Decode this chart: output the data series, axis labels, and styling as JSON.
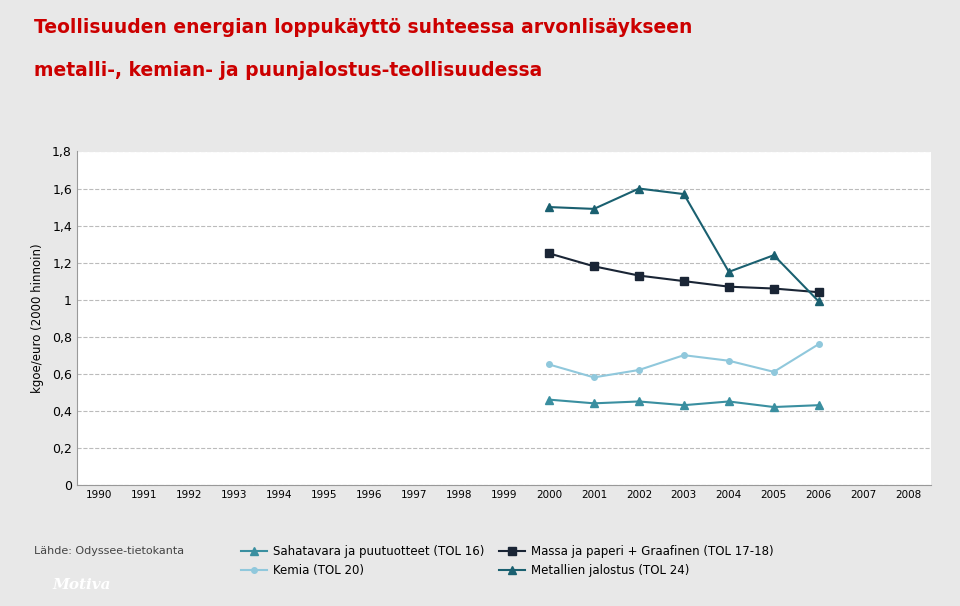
{
  "title_line1": "Teollisuuden energian loppukäyttö suhteessa arvonlisäykseen",
  "title_line2": "metalli-, kemian- ja puunjalostus-teollisuudessa",
  "title_color": "#cc0000",
  "ylabel": "kgoe/euro (2000 hinnoin)",
  "years": [
    2000,
    2001,
    2002,
    2003,
    2004,
    2005,
    2006
  ],
  "sahatavara": [
    0.46,
    0.44,
    0.45,
    0.43,
    0.45,
    0.42,
    0.43
  ],
  "massa_paperi": [
    1.25,
    1.18,
    1.13,
    1.1,
    1.07,
    1.06,
    1.04
  ],
  "kemia": [
    0.65,
    0.58,
    0.62,
    0.7,
    0.67,
    0.61,
    0.76
  ],
  "metallien": [
    1.5,
    1.49,
    1.6,
    1.57,
    1.15,
    1.24,
    0.99
  ],
  "sahatavara_color": "#3a8fa0",
  "massa_paperi_color": "#1a2535",
  "kemia_color": "#90c8dc",
  "metallien_color": "#1a6070",
  "xlim_min": 1989.5,
  "xlim_max": 2008.5,
  "ylim_min": 0,
  "ylim_max": 1.8,
  "yticks": [
    0,
    0.2,
    0.4,
    0.6,
    0.8,
    1.0,
    1.2,
    1.4,
    1.6,
    1.8
  ],
  "ytick_labels": [
    "0",
    "0,2",
    "0,4",
    "0,6",
    "0,8",
    "1",
    "1,2",
    "1,4",
    "1,6",
    "1,8"
  ],
  "xticks": [
    1990,
    1991,
    1992,
    1993,
    1994,
    1995,
    1996,
    1997,
    1998,
    1999,
    2000,
    2001,
    2002,
    2003,
    2004,
    2005,
    2006,
    2007,
    2008
  ],
  "source_text": "Lähde: Odyssee-tietokanta",
  "legend_labels": [
    "Sahatavara ja puutuotteet (TOL 16)",
    "Massa ja paperi + Graafinen (TOL 17-18)",
    "Kemia (TOL 20)",
    "Metallien jalostus (TOL 24)"
  ],
  "fig_bg": "#e8e8e8",
  "plot_bg": "#ffffff",
  "motiva_text": "Motiva"
}
